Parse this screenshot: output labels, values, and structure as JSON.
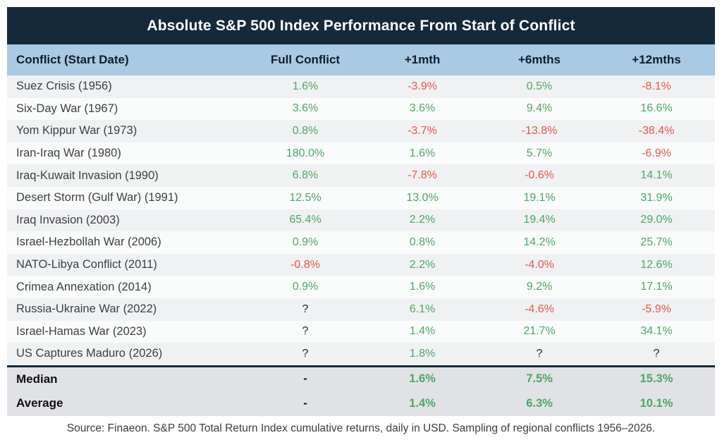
{
  "chart_data": {
    "type": "table",
    "title": "Absolute S&P 500 Index Performance From Start of Conflict",
    "columns": [
      "Conflict (Start Date)",
      "Full Conflict",
      "+1mth",
      "+6mths",
      "+12mths"
    ],
    "rows": [
      {
        "name": "Suez Crisis (1956)",
        "values": [
          "1.6%",
          "-3.9%",
          "0.5%",
          "-8.1%"
        ]
      },
      {
        "name": "Six-Day War (1967)",
        "values": [
          "3.6%",
          "3.6%",
          "9.4%",
          "16.6%"
        ]
      },
      {
        "name": "Yom Kippur War (1973)",
        "values": [
          "0.8%",
          "-3.7%",
          "-13.8%",
          "-38.4%"
        ]
      },
      {
        "name": "Iran-Iraq War (1980)",
        "values": [
          "180.0%",
          "1.6%",
          "5.7%",
          "-6.9%"
        ]
      },
      {
        "name": "Iraq-Kuwait Invasion (1990)",
        "values": [
          "6.8%",
          "-7.8%",
          "-0.6%",
          "14.1%"
        ]
      },
      {
        "name": "Desert Storm (Gulf War) (1991)",
        "values": [
          "12.5%",
          "13.0%",
          "19.1%",
          "31.9%"
        ]
      },
      {
        "name": "Iraq Invasion (2003)",
        "values": [
          "65.4%",
          "2.2%",
          "19.4%",
          "29.0%"
        ]
      },
      {
        "name": "Israel-Hezbollah War (2006)",
        "values": [
          "0.9%",
          "0.8%",
          "14.2%",
          "25.7%"
        ]
      },
      {
        "name": "NATO-Libya Conflict (2011)",
        "values": [
          "-0.8%",
          "2.2%",
          "-4.0%",
          "12.6%"
        ]
      },
      {
        "name": "Crimea Annexation (2014)",
        "values": [
          "0.9%",
          "1.6%",
          "9.2%",
          "17.1%"
        ]
      },
      {
        "name": "Russia-Ukraine War (2022)",
        "values": [
          "?",
          "6.1%",
          "-4.6%",
          "-5.9%"
        ]
      },
      {
        "name": "Israel-Hamas War (2023)",
        "values": [
          "?",
          "1.4%",
          "21.7%",
          "34.1%"
        ]
      },
      {
        "name": "US Captures Maduro (2026)",
        "values": [
          "?",
          "1.8%",
          "?",
          "?"
        ]
      }
    ],
    "summary": [
      {
        "name": "Median",
        "values": [
          "-",
          "1.6%",
          "7.5%",
          "15.3%"
        ]
      },
      {
        "name": "Average",
        "values": [
          "-",
          "1.4%",
          "6.3%",
          "10.1%"
        ]
      }
    ],
    "source": "Source: Finaeon. S&P 500 Total Return Index cumulative returns, daily in USD. Sampling of regional conflicts 1956–2026."
  },
  "colors": {
    "navy": "#16293b",
    "header_blue": "#a9c9e4",
    "positive_green": "#4fa763",
    "negative_red": "#e8564c",
    "neutral_text": "#242424",
    "row_stripe": "#f0f1f3",
    "summary_bg": "#e0e2e6"
  }
}
